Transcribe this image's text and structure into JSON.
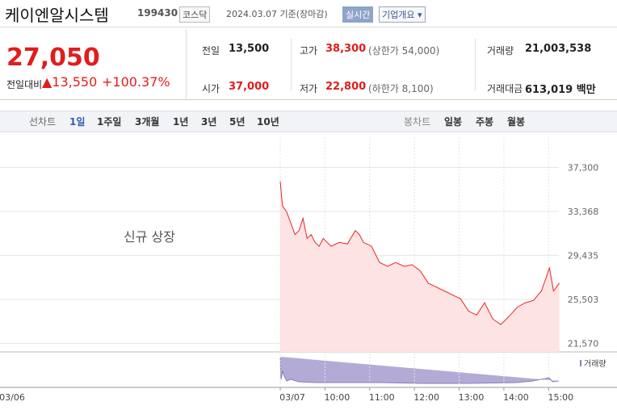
{
  "header": {
    "name": "케이엔알시스템",
    "code": "199430",
    "market": "코스닥",
    "date": "2024.03.07 기준(장마감)",
    "realtime": "실시간",
    "overview": "기업개요 ▾"
  },
  "quote": {
    "price": "27,050",
    "change_label": "전일대비",
    "change": "▲13,550",
    "change_pct": "+100.37%"
  },
  "stats": {
    "prev_close": {
      "label": "전일",
      "value": "13,500"
    },
    "open": {
      "label": "시가",
      "value": "37,000"
    },
    "high": {
      "label": "고가",
      "value": "38,300",
      "note": "(상한가 54,000)"
    },
    "low": {
      "label": "저가",
      "value": "22,800",
      "note": "(하한가 8,100)"
    },
    "volume": {
      "label": "거래량",
      "value": "21,003,538"
    },
    "amount": {
      "label": "거래대금",
      "value": "613,019 백만"
    }
  },
  "tabs": {
    "line_label": "선차트",
    "line": [
      "1일",
      "1주일",
      "3개월",
      "1년",
      "3년",
      "5년",
      "10년"
    ],
    "candle_label": "봉차트",
    "candle": [
      "일봉",
      "주봉",
      "월봉"
    ]
  },
  "chart_data": {
    "type": "area",
    "color": "#e8262a",
    "fill": "#fde3e3",
    "grid": true,
    "annotation": "신규 상장",
    "volume_label": "거래량",
    "x_start_label": "03/06",
    "x": [
      9.0,
      9.05,
      9.14,
      9.23,
      9.33,
      9.42,
      9.51,
      9.6,
      9.69,
      9.78,
      9.87,
      9.96,
      10.05,
      10.14,
      10.32,
      10.5,
      10.68,
      10.77,
      10.86,
      11.04,
      11.22,
      11.4,
      11.58,
      11.77,
      11.95,
      12.13,
      12.31,
      12.49,
      12.67,
      12.85,
      13.03,
      13.21,
      13.39,
      13.57,
      13.75,
      13.93,
      14.11,
      14.3,
      14.48,
      14.66,
      14.84,
      15.02,
      15.11,
      15.24
    ],
    "values": [
      36050,
      33850,
      33350,
      32400,
      31300,
      31650,
      32750,
      30950,
      31300,
      30600,
      30250,
      30950,
      30600,
      30250,
      30600,
      30450,
      31650,
      31300,
      30600,
      30250,
      28800,
      28450,
      28800,
      28450,
      28600,
      28050,
      26950,
      26600,
      26250,
      25900,
      25550,
      24450,
      24100,
      25200,
      23750,
      23250,
      23950,
      24800,
      25200,
      25400,
      26250,
      28300,
      26250,
      26950
    ],
    "xlim": [
      9,
      15.5
    ],
    "xticks": [
      {
        "value": 9,
        "label": "03/07"
      },
      {
        "value": 10,
        "label": "10:00"
      },
      {
        "value": 11,
        "label": "11:00"
      },
      {
        "value": 12,
        "label": "12:00"
      },
      {
        "value": 13,
        "label": "13:00"
      },
      {
        "value": 14,
        "label": "14:00"
      },
      {
        "value": 15,
        "label": "15:00"
      }
    ],
    "ylim": [
      20800,
      38200
    ],
    "yticks": [
      {
        "value": 37300,
        "label": "37,300"
      },
      {
        "value": 33368,
        "label": "33,368"
      },
      {
        "value": 29435,
        "label": "29,435"
      },
      {
        "value": 25503,
        "label": "25,503"
      },
      {
        "value": 21570,
        "label": "21,570"
      }
    ]
  }
}
